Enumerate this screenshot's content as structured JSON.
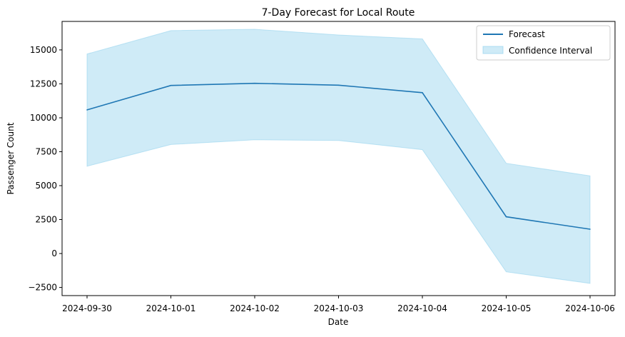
{
  "chart_data": {
    "type": "line",
    "title": "7-Day Forecast for Local Route",
    "xlabel": "Date",
    "ylabel": "Passenger Count",
    "x": [
      "2024-09-30",
      "2024-10-01",
      "2024-10-02",
      "2024-10-03",
      "2024-10-04",
      "2024-10-05",
      "2024-10-06"
    ],
    "series": [
      {
        "name": "Forecast",
        "values": [
          10580,
          12380,
          12540,
          12400,
          11850,
          2710,
          1790
        ],
        "color": "#1f77b4"
      }
    ],
    "confidence_interval": {
      "name": "Confidence Interval",
      "lower": [
        6430,
        8030,
        8380,
        8330,
        7650,
        -1350,
        -2200
      ],
      "upper": [
        14700,
        16420,
        16520,
        16100,
        15810,
        6650,
        5720
      ],
      "color": "#87ceeb"
    },
    "ylim": [
      -3100,
      17100
    ],
    "yticks": [
      -2500,
      0,
      2500,
      5000,
      7500,
      10000,
      12500,
      15000
    ],
    "ytick_labels": [
      "−2500",
      "0",
      "2500",
      "5000",
      "7500",
      "10000",
      "12500",
      "15000"
    ],
    "grid": false,
    "legend_position": "top-right"
  }
}
